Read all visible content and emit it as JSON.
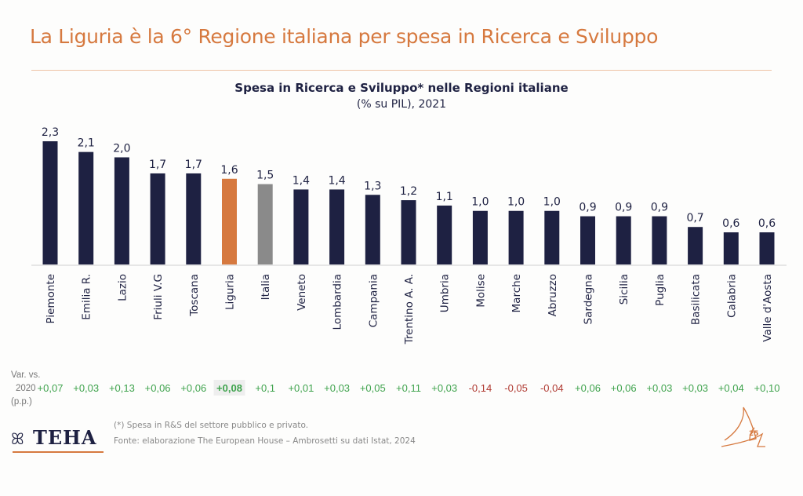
{
  "header": {
    "title": "La Liguria è la 6° Regione italiana per spesa in Ricerca e Sviluppo"
  },
  "colors": {
    "accent": "#d6793f",
    "bar_default": "#1e2142",
    "bar_highlight": "#d6793f",
    "bar_national": "#8a8a8a",
    "positive": "#3fa34d",
    "negative": "#b03a32"
  },
  "chart_data": {
    "type": "bar",
    "title": "Spesa in Ricerca e Sviluppo* nelle Regioni italiane",
    "subtitle": "(% su PIL), 2021",
    "xlabel": "",
    "ylabel": "",
    "ylim": [
      0,
      2.3
    ],
    "grid": false,
    "categories": [
      "Piemonte",
      "Emilia R.",
      "Lazio",
      "Friuli V.G",
      "Toscana",
      "Liguria",
      "Italia",
      "Veneto",
      "Lombardia",
      "Campania",
      "Trentino A. A.",
      "Umbria",
      "Molise",
      "Marche",
      "Abruzzo",
      "Sardegna",
      "Sicilia",
      "Puglia",
      "Basilicata",
      "Calabria",
      "Valle d'Aosta"
    ],
    "values": [
      2.3,
      2.1,
      2.0,
      1.7,
      1.7,
      1.6,
      1.5,
      1.4,
      1.4,
      1.3,
      1.2,
      1.1,
      1.0,
      1.0,
      1.0,
      0.9,
      0.9,
      0.9,
      0.7,
      0.6,
      0.6
    ],
    "value_labels": [
      "2,3",
      "2,1",
      "2,0",
      "1,7",
      "1,7",
      "1,6",
      "1,5",
      "1,4",
      "1,4",
      "1,3",
      "1,2",
      "1,1",
      "1,0",
      "1,0",
      "1,0",
      "0,9",
      "0,9",
      "0,9",
      "0,7",
      "0,6",
      "0,6"
    ],
    "highlight": {
      "Liguria": "highlight",
      "Italia": "national"
    },
    "variation": {
      "label_lines": [
        "Var. vs.",
        "2020",
        "(p.p.)"
      ],
      "values": [
        "+0,07",
        "+0,03",
        "+0,13",
        "+0,06",
        "+0,06",
        "+0,08",
        "+0,1",
        "+0,01",
        "+0,03",
        "+0,05",
        "+0,11",
        "+0,03",
        "-0,14",
        "-0,05",
        "-0,04",
        "+0,06",
        "+0,06",
        "+0,03",
        "+0,03",
        "+0,04",
        "+0,10"
      ],
      "highlighted": "Liguria"
    }
  },
  "footer": {
    "note": "(*) Spesa in R&S del settore pubblico e privato.",
    "source": "Fonte: elaborazione The European House – Ambrosetti su dati Istat, 2024",
    "logo_text": "TEHA",
    "page_number": "25"
  }
}
